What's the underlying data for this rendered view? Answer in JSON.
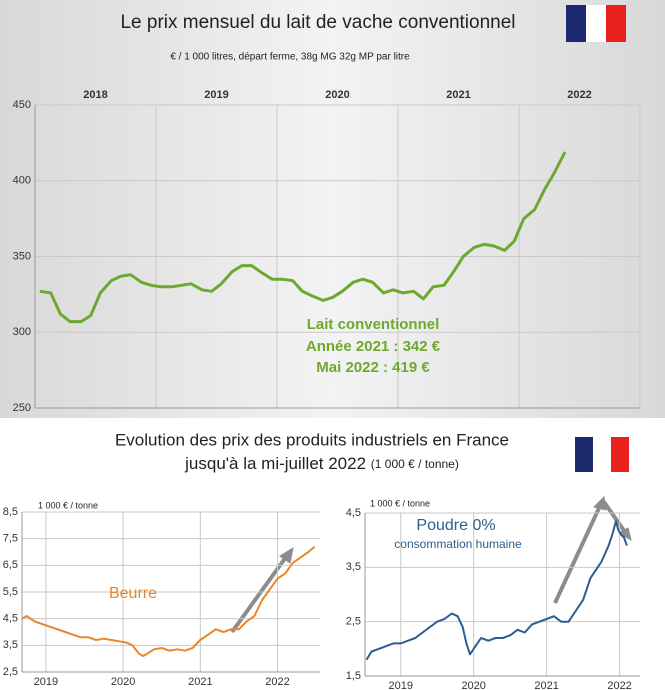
{
  "chart_data": [
    {
      "type": "line",
      "title": "Le prix mensuel du lait de vache conventionnel",
      "subtitle": "€ / 1 000 litres, départ ferme, 38g MG 32g MP par litre",
      "x_axis_side": "top",
      "grid": true,
      "xlim": [
        2018,
        2023
      ],
      "ylim": [
        250,
        450
      ],
      "xticks": [
        {
          "value": 2018.5,
          "label": "2018"
        },
        {
          "value": 2019.5,
          "label": "2019"
        },
        {
          "value": 2020.5,
          "label": "2020"
        },
        {
          "value": 2021.5,
          "label": "2021"
        },
        {
          "value": 2022.5,
          "label": "2022"
        }
      ],
      "yticks": [
        250,
        300,
        350,
        400,
        450
      ],
      "annotations": [
        "Lait conventionnel",
        "Année 2021 : 342 €",
        "Mai 2022 : 419 €"
      ],
      "series": [
        {
          "name": "Lait conventionnel",
          "color": "#6ea82e",
          "x": [
            2018.04,
            2018.13,
            2018.21,
            2018.29,
            2018.38,
            2018.46,
            2018.54,
            2018.63,
            2018.71,
            2018.79,
            2018.88,
            2018.96,
            2019.04,
            2019.13,
            2019.21,
            2019.29,
            2019.38,
            2019.46,
            2019.54,
            2019.63,
            2019.71,
            2019.79,
            2019.88,
            2019.96,
            2020.04,
            2020.13,
            2020.21,
            2020.29,
            2020.38,
            2020.46,
            2020.54,
            2020.63,
            2020.71,
            2020.79,
            2020.88,
            2020.96,
            2021.04,
            2021.13,
            2021.21,
            2021.29,
            2021.38,
            2021.46,
            2021.54,
            2021.63,
            2021.71,
            2021.79,
            2021.88,
            2021.96,
            2022.04,
            2022.13,
            2022.21,
            2022.29,
            2022.38
          ],
          "values": [
            327,
            326,
            312,
            307,
            307,
            311,
            326,
            334,
            337,
            338,
            333,
            331,
            330,
            330,
            331,
            332,
            328,
            327,
            332,
            340,
            344,
            344,
            339,
            335,
            335,
            334,
            327,
            324,
            321,
            323,
            327,
            333,
            335,
            333,
            326,
            328,
            326,
            327,
            322,
            330,
            331,
            340,
            350,
            356,
            358,
            357,
            354,
            360,
            375,
            381,
            394,
            405,
            419
          ]
        }
      ]
    },
    {
      "type": "line",
      "title": "Evolution des prix des produits industriels en France",
      "title_line2": "jusqu'à la mi-juillet 2022",
      "title_unit": "(1 000 € / tonne)",
      "y_label": "1 000 € / tonne",
      "grid": true,
      "xlim": [
        2018.69,
        2022.55
      ],
      "ylim": [
        2.5,
        8.5
      ],
      "xticks": [
        2019,
        2020,
        2021,
        2022
      ],
      "yticks": [
        {
          "value": 2.5,
          "label": "2,5"
        },
        {
          "value": 3.5,
          "label": "3,5"
        },
        {
          "value": 4.5,
          "label": "4,5"
        },
        {
          "value": 5.5,
          "label": "5,5"
        },
        {
          "value": 6.5,
          "label": "6,5"
        },
        {
          "value": 7.5,
          "label": "7,5"
        },
        {
          "value": 8.5,
          "label": "8,5"
        }
      ],
      "annotations": [
        "Beurre"
      ],
      "series": [
        {
          "name": "Beurre",
          "color": "#e8862a",
          "x": [
            2018.69,
            2018.75,
            2018.85,
            2018.95,
            2019.05,
            2019.15,
            2019.25,
            2019.35,
            2019.45,
            2019.55,
            2019.65,
            2019.75,
            2019.85,
            2019.95,
            2020.05,
            2020.12,
            2020.2,
            2020.26,
            2020.32,
            2020.4,
            2020.5,
            2020.6,
            2020.7,
            2020.8,
            2020.9,
            2021.0,
            2021.1,
            2021.2,
            2021.3,
            2021.4,
            2021.5,
            2021.6,
            2021.7,
            2021.8,
            2021.9,
            2022.0,
            2022.1,
            2022.2,
            2022.3,
            2022.4,
            2022.48
          ],
          "values": [
            4.5,
            4.6,
            4.4,
            4.3,
            4.2,
            4.1,
            4.0,
            3.9,
            3.8,
            3.8,
            3.7,
            3.75,
            3.7,
            3.65,
            3.6,
            3.5,
            3.2,
            3.1,
            3.2,
            3.35,
            3.4,
            3.3,
            3.35,
            3.3,
            3.4,
            3.7,
            3.9,
            4.1,
            4.0,
            4.1,
            4.1,
            4.4,
            4.6,
            5.2,
            5.6,
            6.0,
            6.2,
            6.6,
            6.8,
            7.0,
            7.2
          ]
        }
      ]
    },
    {
      "type": "line",
      "y_label": "1 000 € / tonne",
      "grid": true,
      "xlim": [
        2018.51,
        2022.28
      ],
      "ylim": [
        1.5,
        4.5
      ],
      "xticks": [
        2019,
        2020,
        2021,
        2022
      ],
      "yticks": [
        {
          "value": 1.5,
          "label": "1,5"
        },
        {
          "value": 2.5,
          "label": "2,5"
        },
        {
          "value": 3.5,
          "label": "3,5"
        },
        {
          "value": 4.5,
          "label": "4,5"
        }
      ],
      "annotations": [
        "Poudre 0%",
        "consommation humaine"
      ],
      "series": [
        {
          "name": "Poudre 0%",
          "color": "#2e5e8e",
          "x": [
            2018.53,
            2018.6,
            2018.7,
            2018.8,
            2018.9,
            2019.0,
            2019.1,
            2019.2,
            2019.3,
            2019.4,
            2019.5,
            2019.6,
            2019.7,
            2019.78,
            2019.85,
            2019.9,
            2019.95,
            2020.0,
            2020.1,
            2020.2,
            2020.3,
            2020.4,
            2020.5,
            2020.6,
            2020.7,
            2020.8,
            2020.9,
            2021.0,
            2021.1,
            2021.2,
            2021.3,
            2021.4,
            2021.5,
            2021.6,
            2021.7,
            2021.75,
            2021.8,
            2021.85,
            2021.9,
            2021.95,
            2021.98,
            2022.02,
            2022.06,
            2022.1
          ],
          "values": [
            1.8,
            1.95,
            2.0,
            2.05,
            2.1,
            2.1,
            2.15,
            2.2,
            2.3,
            2.4,
            2.5,
            2.55,
            2.65,
            2.6,
            2.4,
            2.1,
            1.9,
            2.0,
            2.2,
            2.15,
            2.2,
            2.2,
            2.25,
            2.35,
            2.3,
            2.45,
            2.5,
            2.55,
            2.6,
            2.5,
            2.5,
            2.7,
            2.9,
            3.3,
            3.5,
            3.6,
            3.75,
            3.9,
            4.1,
            4.35,
            4.2,
            4.1,
            4.05,
            3.9
          ]
        }
      ]
    }
  ]
}
